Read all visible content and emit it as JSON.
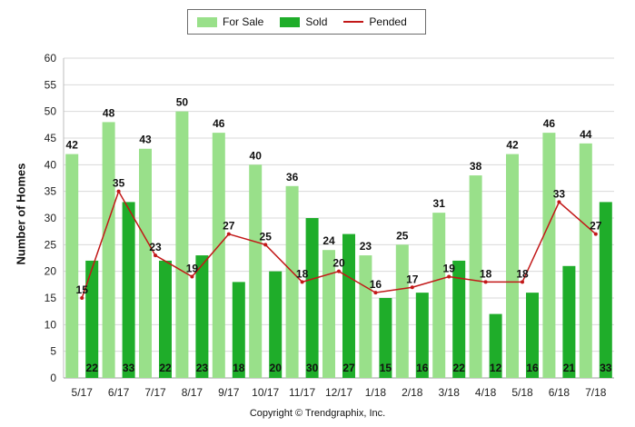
{
  "chart_data": {
    "type": "bar",
    "categories": [
      "5/17",
      "6/17",
      "7/17",
      "8/17",
      "9/17",
      "10/17",
      "11/17",
      "12/17",
      "1/18",
      "2/18",
      "3/18",
      "4/18",
      "5/18",
      "6/18",
      "7/18"
    ],
    "series": [
      {
        "name": "For Sale",
        "type": "bar",
        "color": "#99e08a",
        "values": [
          42,
          48,
          43,
          50,
          46,
          40,
          36,
          24,
          23,
          25,
          31,
          38,
          42,
          46,
          44
        ]
      },
      {
        "name": "Sold",
        "type": "bar",
        "color": "#1fad2a",
        "values": [
          22,
          33,
          22,
          23,
          18,
          20,
          30,
          27,
          15,
          16,
          22,
          12,
          16,
          21,
          33
        ]
      },
      {
        "name": "Pended",
        "type": "line",
        "color": "#c21818",
        "values": [
          15,
          35,
          23,
          19,
          27,
          25,
          18,
          20,
          16,
          17,
          19,
          18,
          18,
          33,
          27
        ]
      }
    ],
    "ylabel": "Number of Homes",
    "ylim": [
      0,
      60
    ],
    "yticks": [
      0,
      5,
      10,
      15,
      20,
      25,
      30,
      35,
      40,
      45,
      50,
      55,
      60
    ],
    "grid": true,
    "legend_position": "top-center"
  },
  "footer": {
    "copyright": "Copyright © Trendgraphix, Inc."
  }
}
